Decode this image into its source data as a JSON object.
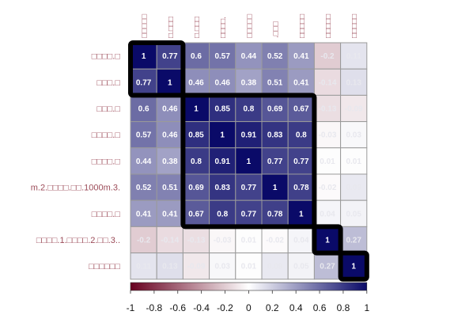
{
  "chart_data": {
    "type": "heatmap",
    "row_labels": [
      "□□□□.□",
      "□□□.□",
      "□□□.□",
      "□□□□.□",
      "□□□□.□",
      "m.2.□□□□.□□.1000m.3.",
      "□□□□.□",
      "□□□□.1.□□□□.2.□□.3..",
      "□□□□□□"
    ],
    "col_labels": [
      "□□□□□",
      "□.□□□",
      "□.□□□",
      "□□□□.",
      "□□□□□",
      ".□□□",
      "□□□□□",
      "□□□□□",
      "□□□□□"
    ],
    "matrix": [
      [
        1,
        0.77,
        0.6,
        0.57,
        0.44,
        0.52,
        0.41,
        -0.2,
        0.11
      ],
      [
        0.77,
        1,
        0.46,
        0.46,
        0.38,
        0.51,
        0.41,
        -0.14,
        0.13
      ],
      [
        0.6,
        0.46,
        1,
        0.85,
        0.8,
        0.69,
        0.67,
        -0.13,
        -0.09
      ],
      [
        0.57,
        0.46,
        0.85,
        1,
        0.91,
        0.83,
        0.8,
        -0.03,
        0.03
      ],
      [
        0.44,
        0.38,
        0.8,
        0.91,
        1,
        0.77,
        0.77,
        0.01,
        0.01
      ],
      [
        0.52,
        0.51,
        0.69,
        0.83,
        0.77,
        1,
        0.78,
        -0.02,
        0.09
      ],
      [
        0.41,
        0.41,
        0.67,
        0.8,
        0.77,
        0.78,
        1,
        0.04,
        0.05
      ],
      [
        -0.2,
        -0.14,
        -0.13,
        -0.03,
        0.01,
        -0.02,
        0.04,
        1,
        0.27
      ],
      [
        0.11,
        0.13,
        -0.09,
        0.03,
        0.01,
        0.09,
        0.05,
        0.27,
        1
      ]
    ],
    "clusters": [
      [
        0,
        1
      ],
      [
        2,
        6
      ],
      [
        7,
        7
      ],
      [
        8,
        8
      ]
    ],
    "colorbar": {
      "range": [
        -1,
        1
      ],
      "ticks": [
        "-1",
        "-0.8",
        "-0.6",
        "-0.4",
        "-0.2",
        "0",
        "0.2",
        "0.4",
        "0.6",
        "0.8",
        "1"
      ]
    },
    "colors": {
      "negative": "#67001f",
      "zero": "#ffffff",
      "positive": "#0a0a68",
      "label_color": "#9c4b58",
      "cell_border": "#9a9a9a",
      "cluster_border": "#000000"
    }
  }
}
